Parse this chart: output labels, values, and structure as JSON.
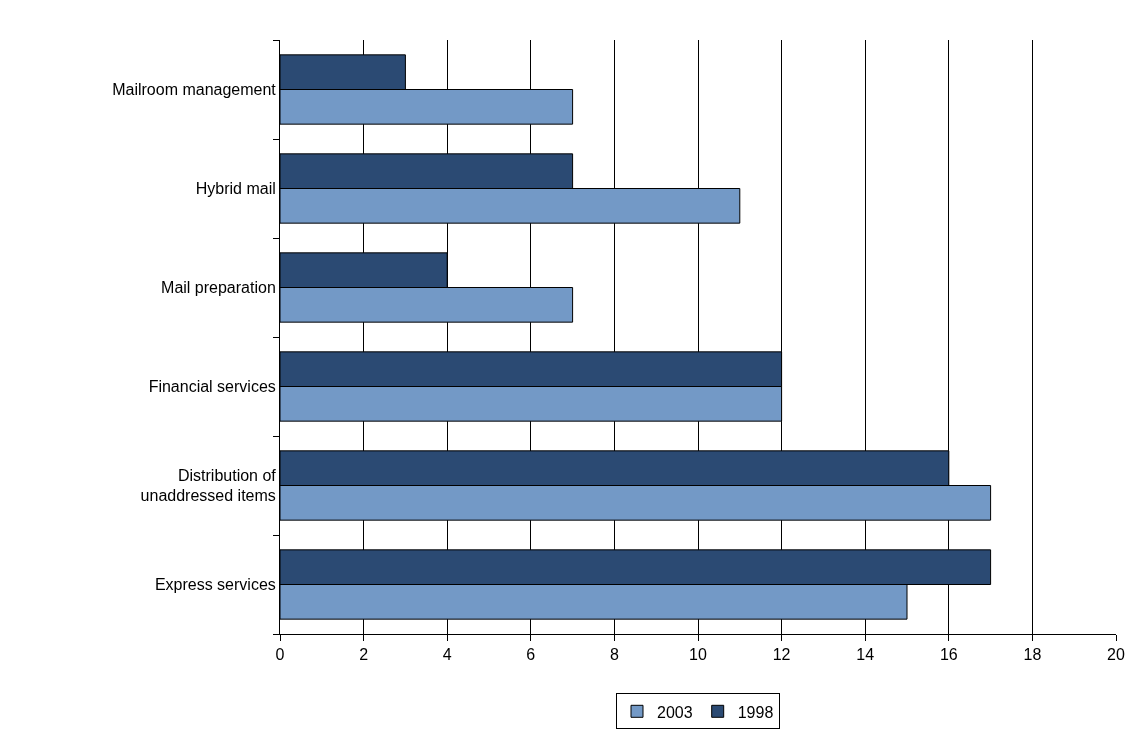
{
  "chart_data": {
    "type": "bar",
    "orientation": "horizontal",
    "categories": [
      "Mailroom management",
      "Hybrid mail",
      "Mail preparation",
      "Financial services",
      "Distribution of\nunaddressed items",
      "Express services"
    ],
    "series": [
      {
        "name": "2003",
        "color": "#7399c6",
        "values": [
          7,
          11,
          7,
          12,
          17,
          15
        ]
      },
      {
        "name": "1998",
        "color": "#2b4a73",
        "values": [
          3,
          7,
          4,
          12,
          16,
          17
        ]
      }
    ],
    "xlim": [
      0,
      20
    ],
    "xticks": [
      0,
      2,
      4,
      6,
      8,
      10,
      12,
      14,
      16,
      18,
      20
    ],
    "grid": "x",
    "legend": "bottom"
  }
}
